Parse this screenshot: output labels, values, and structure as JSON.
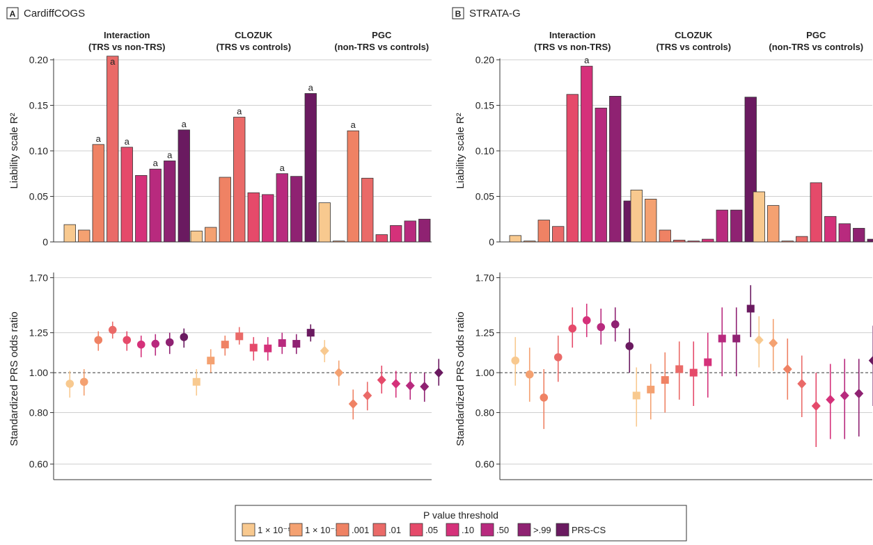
{
  "threshold_colors": [
    "#f8c98f",
    "#f4a171",
    "#ef8264",
    "#ea6a68",
    "#e54a6a",
    "#d5317a",
    "#b82a7e",
    "#8f2272",
    "#6a1a60"
  ],
  "legend": {
    "title": "P value threshold",
    "items": [
      "1 × 10⁻⁵",
      "1 × 10⁻⁴",
      ".001",
      ".01",
      ".05",
      ".10",
      ".50",
      ">.99",
      "PRS-CS"
    ]
  },
  "chart_data": [
    {
      "type": "bar",
      "panel": "A",
      "title": "CardiffCOGS",
      "ylabel": "Liability scale R²",
      "ylim": [
        0,
        0.2
      ],
      "yticks": [
        0,
        0.05,
        0.1,
        0.15,
        0.2
      ],
      "ytick_labels": [
        "0",
        "0.05",
        "0.10",
        "0.15",
        "0.20"
      ],
      "groups": [
        {
          "name": "Interaction",
          "subtitle": "(TRS vs non-TRS)",
          "values": [
            0.019,
            0.013,
            0.107,
            0.204,
            0.104,
            0.073,
            0.08,
            0.089,
            0.123
          ],
          "significant": [
            false,
            false,
            true,
            true,
            true,
            false,
            true,
            true,
            true
          ]
        },
        {
          "name": "CLOZUK",
          "subtitle": "(TRS vs controls)",
          "values": [
            0.012,
            0.016,
            0.071,
            0.137,
            0.054,
            0.052,
            0.075,
            0.072,
            0.163
          ],
          "significant": [
            false,
            false,
            false,
            true,
            false,
            false,
            true,
            false,
            true
          ]
        },
        {
          "name": "PGC",
          "subtitle": "(non-TRS vs controls)",
          "values": [
            0.043,
            0.001,
            0.122,
            0.07,
            0.008,
            0.018,
            0.023,
            0.025,
            null
          ],
          "significant": [
            false,
            false,
            true,
            false,
            false,
            false,
            false,
            false,
            false
          ]
        }
      ],
      "sig_marker": "a"
    },
    {
      "type": "bar",
      "panel": "B",
      "title": "STRATA-G",
      "ylabel": "Liability scale R²",
      "ylim": [
        0,
        0.2
      ],
      "yticks": [
        0,
        0.05,
        0.1,
        0.15,
        0.2
      ],
      "ytick_labels": [
        "0",
        "0.05",
        "0.10",
        "0.15",
        "0.20"
      ],
      "groups": [
        {
          "name": "Interaction",
          "subtitle": "(TRS vs non-TRS)",
          "values": [
            0.007,
            0.001,
            0.024,
            0.017,
            0.162,
            0.193,
            0.147,
            0.16,
            0.045
          ],
          "significant": [
            false,
            false,
            false,
            false,
            false,
            true,
            false,
            false,
            false
          ]
        },
        {
          "name": "CLOZUK",
          "subtitle": "(TRS vs controls)",
          "values": [
            0.057,
            0.047,
            0.013,
            0.002,
            0.001,
            0.003,
            0.035,
            0.035,
            0.159
          ],
          "significant": [
            false,
            false,
            false,
            false,
            false,
            false,
            false,
            false,
            false
          ]
        },
        {
          "name": "PGC",
          "subtitle": "(non-TRS vs controls)",
          "values": [
            0.055,
            0.04,
            0.001,
            0.006,
            0.065,
            0.028,
            0.02,
            0.015,
            0.003
          ],
          "significant": [
            false,
            false,
            false,
            false,
            false,
            false,
            false,
            false,
            false
          ]
        }
      ],
      "sig_marker": "a"
    },
    {
      "type": "scatter",
      "panel": "A",
      "ylabel": "Standardized PRS odds ratio",
      "ylim": [
        0.55,
        1.7
      ],
      "yticks": [
        0.6,
        0.8,
        1.0,
        1.25,
        1.7
      ],
      "ytick_labels": [
        "0.60",
        "0.80",
        "1.00",
        "1.25",
        "1.70"
      ],
      "reference_line": 1.0,
      "groups": [
        {
          "marker": "circle",
          "or": [
            0.94,
            0.95,
            1.2,
            1.27,
            1.2,
            1.17,
            1.175,
            1.185,
            1.22
          ],
          "lo": [
            0.87,
            0.88,
            1.13,
            1.21,
            1.13,
            1.09,
            1.1,
            1.11,
            1.15
          ],
          "hi": [
            1.01,
            1.02,
            1.26,
            1.33,
            1.26,
            1.23,
            1.24,
            1.25,
            1.28
          ]
        },
        {
          "marker": "square",
          "or": [
            0.95,
            1.07,
            1.17,
            1.225,
            1.15,
            1.145,
            1.18,
            1.175,
            1.25
          ],
          "lo": [
            0.88,
            1.0,
            1.1,
            1.17,
            1.07,
            1.07,
            1.11,
            1.11,
            1.19
          ],
          "hi": [
            1.02,
            1.14,
            1.23,
            1.29,
            1.22,
            1.22,
            1.25,
            1.24,
            1.31
          ]
        },
        {
          "marker": "diamond",
          "or": [
            1.13,
            1.0,
            0.84,
            0.88,
            0.96,
            0.94,
            0.93,
            0.925,
            1.0
          ],
          "lo": [
            1.06,
            0.93,
            0.77,
            0.81,
            0.89,
            0.87,
            0.86,
            0.85,
            0.93
          ],
          "hi": [
            1.2,
            1.07,
            0.91,
            0.95,
            1.04,
            1.01,
            1.0,
            1.0,
            1.08
          ]
        }
      ]
    },
    {
      "type": "scatter",
      "panel": "B",
      "ylabel": "Standardized PRS odds ratio",
      "ylim": [
        0.55,
        1.7
      ],
      "yticks": [
        0.6,
        0.8,
        1.0,
        1.25,
        1.7
      ],
      "ytick_labels": [
        "0.60",
        "0.80",
        "1.00",
        "1.25",
        "1.70"
      ],
      "reference_line": 1.0,
      "groups": [
        {
          "marker": "circle",
          "or": [
            1.07,
            0.99,
            0.87,
            1.09,
            1.28,
            1.34,
            1.29,
            1.31,
            1.16
          ],
          "lo": [
            0.93,
            0.85,
            0.73,
            0.95,
            1.15,
            1.22,
            1.17,
            1.19,
            1.0
          ],
          "hi": [
            1.22,
            1.15,
            1.02,
            1.23,
            1.44,
            1.47,
            1.43,
            1.44,
            1.28
          ]
        },
        {
          "marker": "square",
          "or": [
            0.88,
            0.91,
            0.96,
            1.02,
            1.0,
            1.06,
            1.21,
            1.21,
            1.43
          ],
          "lo": [
            0.74,
            0.77,
            0.8,
            0.86,
            0.83,
            0.87,
            0.98,
            0.98,
            1.22
          ],
          "hi": [
            1.03,
            1.05,
            1.12,
            1.19,
            1.19,
            1.25,
            1.44,
            1.44,
            1.63
          ]
        },
        {
          "marker": "diamond",
          "or": [
            1.2,
            1.18,
            1.02,
            0.94,
            0.83,
            0.86,
            0.88,
            0.89,
            1.07
          ],
          "lo": [
            1.03,
            1.01,
            0.86,
            0.78,
            0.66,
            0.69,
            0.69,
            0.7,
            0.83
          ],
          "hi": [
            1.37,
            1.35,
            1.21,
            1.1,
            1.0,
            1.05,
            1.08,
            1.08,
            1.3
          ]
        }
      ]
    }
  ]
}
